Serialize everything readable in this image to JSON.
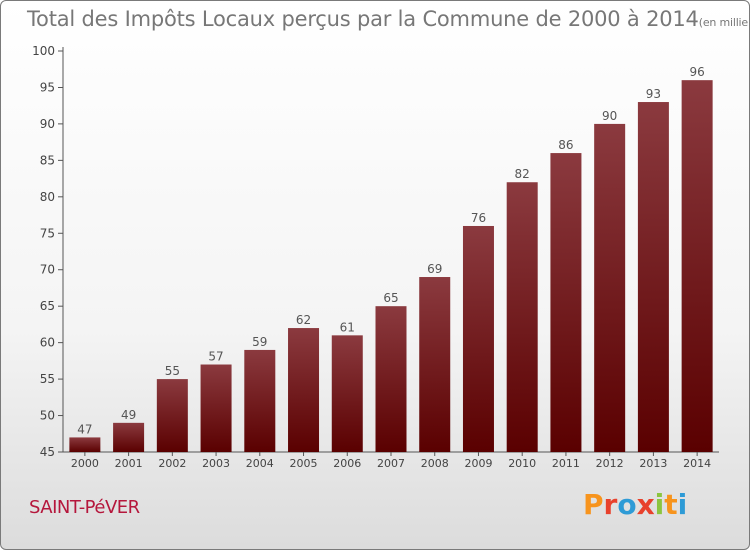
{
  "header": {
    "title": "Total des Impôts Locaux perçus par la Commune de 2000 à 2014",
    "unit": "(en milliers d'€)"
  },
  "footer": {
    "commune": "SAINT-PéVER",
    "brand_letters": [
      "P",
      "r",
      "o",
      "x",
      "i",
      "t",
      "i"
    ],
    "brand_colors": [
      "#f7941d",
      "#e8412c",
      "#2e9bd6",
      "#e8412c",
      "#8bc53f",
      "#f7941d",
      "#2e9bd6"
    ]
  },
  "chart_data": {
    "type": "bar",
    "categories": [
      "2000",
      "2001",
      "2002",
      "2003",
      "2004",
      "2005",
      "2006",
      "2007",
      "2008",
      "2009",
      "2010",
      "2011",
      "2012",
      "2013",
      "2014"
    ],
    "values": [
      47,
      49,
      55,
      57,
      59,
      62,
      61,
      65,
      69,
      76,
      82,
      86,
      90,
      93,
      96
    ],
    "title": "Total des Impôts Locaux perçus par la Commune de 2000 à 2014",
    "ylim": [
      45,
      100
    ],
    "yticks": [
      45,
      50,
      55,
      60,
      65,
      70,
      75,
      80,
      85,
      90,
      95,
      100
    ],
    "bar_color_top": "#8b3a3f",
    "bar_color_bottom": "#5a0000",
    "grid": false,
    "data_labels": true
  }
}
